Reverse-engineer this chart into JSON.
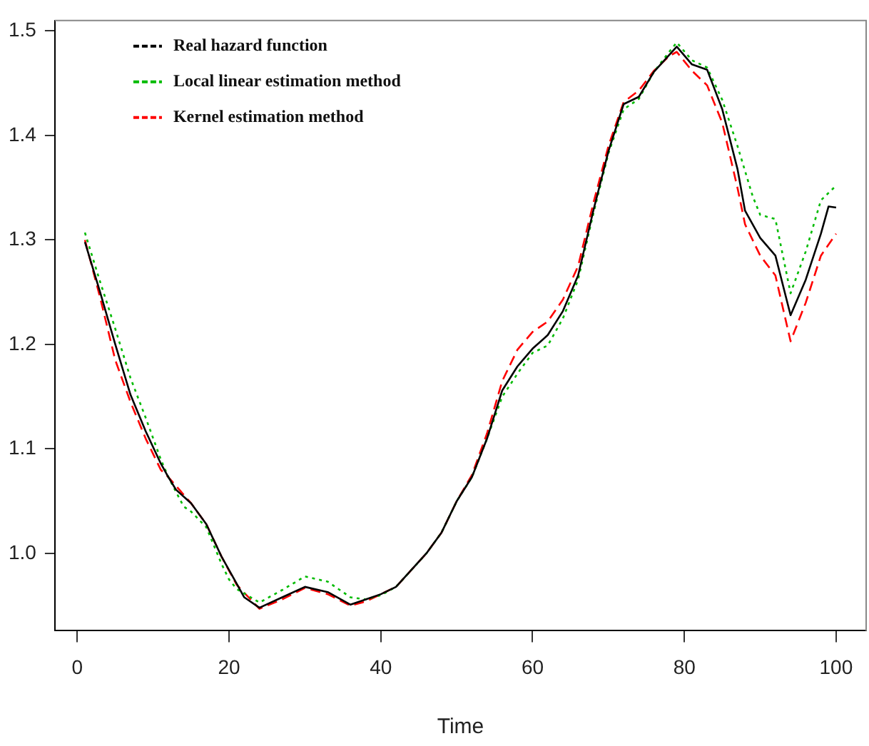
{
  "chart_data": {
    "type": "line",
    "xlabel": "Time",
    "xlim": [
      -2.96,
      103.96
    ],
    "xticks": [
      0,
      20,
      40,
      60,
      80,
      100
    ],
    "ylim": [
      0.926,
      1.51
    ],
    "yticks": [
      {
        "value": 1.0,
        "label": "1.0"
      },
      1.1,
      1.2,
      1.3,
      1.4,
      1.5
    ],
    "grid": false,
    "legend": "top left",
    "marker": "none",
    "series": [
      {
        "name": "Real hazard function",
        "color": "#000000",
        "line_style": "solid",
        "x": [
          1,
          3,
          5,
          7,
          9,
          11,
          12,
          13,
          15,
          17,
          19,
          21,
          22,
          24,
          27,
          30,
          33,
          36,
          38,
          40,
          42,
          44,
          46,
          48,
          50,
          52,
          54,
          56,
          58,
          60,
          62,
          64,
          66,
          68,
          70,
          72,
          74,
          76,
          78,
          79,
          81,
          83,
          85,
          87,
          88,
          90,
          92,
          94,
          96,
          98,
          99,
          100
        ],
        "values": [
          1.298,
          1.25,
          1.2,
          1.152,
          1.117,
          1.086,
          1.073,
          1.061,
          1.048,
          1.028,
          0.997,
          0.971,
          0.958,
          0.948,
          0.958,
          0.968,
          0.963,
          0.951,
          0.956,
          0.961,
          0.968,
          0.984,
          1.0,
          1.02,
          1.05,
          1.073,
          1.11,
          1.156,
          1.179,
          1.196,
          1.209,
          1.232,
          1.266,
          1.328,
          1.385,
          1.43,
          1.437,
          1.461,
          1.477,
          1.485,
          1.468,
          1.463,
          1.425,
          1.368,
          1.328,
          1.302,
          1.285,
          1.228,
          1.262,
          1.306,
          1.332,
          1.331
        ]
      },
      {
        "name": "Local linear estimation method",
        "color": "#00bb00",
        "line_style": "dotted",
        "x": [
          1,
          3,
          5,
          7,
          9,
          11,
          12,
          14,
          15,
          17,
          19,
          20,
          21,
          24,
          27,
          30,
          33,
          36,
          38,
          40,
          42,
          44,
          46,
          48,
          50,
          52,
          54,
          56,
          58,
          60,
          62,
          64,
          66,
          68,
          70,
          72,
          74,
          76,
          78,
          79,
          81,
          83,
          85,
          87,
          89,
          90,
          92,
          94,
          96,
          98,
          100
        ],
        "values": [
          1.307,
          1.26,
          1.215,
          1.168,
          1.13,
          1.09,
          1.073,
          1.045,
          1.04,
          1.025,
          0.99,
          0.975,
          0.966,
          0.953,
          0.965,
          0.978,
          0.973,
          0.958,
          0.956,
          0.96,
          0.968,
          0.984,
          1.0,
          1.02,
          1.05,
          1.073,
          1.11,
          1.15,
          1.172,
          1.192,
          1.199,
          1.225,
          1.262,
          1.325,
          1.383,
          1.425,
          1.435,
          1.461,
          1.48,
          1.489,
          1.472,
          1.465,
          1.434,
          1.39,
          1.342,
          1.324,
          1.32,
          1.249,
          1.289,
          1.338,
          1.352
        ]
      },
      {
        "name": "Kernel estimation method",
        "color": "#ff0000",
        "line_style": "dashed",
        "x": [
          1,
          3,
          5,
          7,
          9,
          11,
          12,
          15,
          17,
          19,
          21,
          24,
          27,
          30,
          33,
          36,
          38,
          40,
          42,
          44,
          46,
          48,
          50,
          52,
          54,
          56,
          58,
          60,
          62,
          64,
          66,
          68,
          70,
          72,
          74,
          76,
          78,
          79,
          81,
          83,
          85,
          87,
          88,
          90,
          92,
          94,
          96,
          98,
          100
        ],
        "values": [
          1.3,
          1.245,
          1.185,
          1.145,
          1.11,
          1.08,
          1.073,
          1.048,
          1.028,
          0.997,
          0.97,
          0.947,
          0.956,
          0.967,
          0.961,
          0.95,
          0.954,
          0.961,
          0.968,
          0.984,
          1.0,
          1.02,
          1.05,
          1.075,
          1.115,
          1.165,
          1.195,
          1.212,
          1.222,
          1.243,
          1.275,
          1.335,
          1.39,
          1.432,
          1.443,
          1.462,
          1.476,
          1.48,
          1.462,
          1.448,
          1.412,
          1.35,
          1.315,
          1.285,
          1.266,
          1.203,
          1.24,
          1.285,
          1.306
        ]
      }
    ]
  }
}
